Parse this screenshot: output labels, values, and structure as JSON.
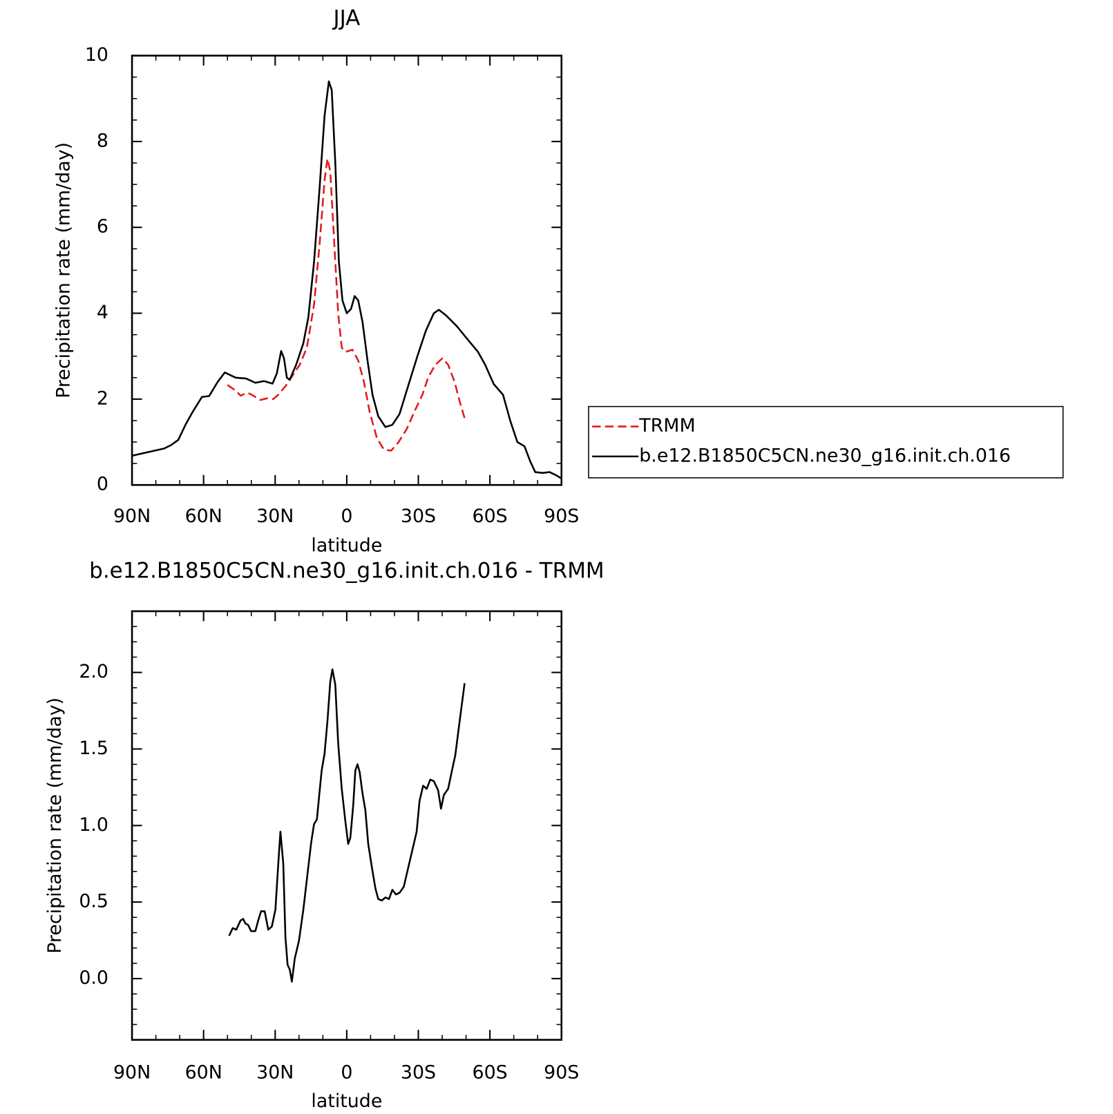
{
  "chart_data": [
    {
      "type": "line",
      "title": "JJA",
      "xlabel": "latitude",
      "ylabel": "Precipitation rate (mm/day)",
      "xlim": [
        90,
        -90
      ],
      "ylim": [
        0,
        10
      ],
      "xticks": [
        {
          "value": 90,
          "label": "90N"
        },
        {
          "value": 60,
          "label": "60N"
        },
        {
          "value": 30,
          "label": "30N"
        },
        0,
        {
          "value": -30,
          "label": "30S"
        },
        {
          "value": -60,
          "label": "60S"
        },
        {
          "value": -90,
          "label": "90S"
        }
      ],
      "yticks": [
        0,
        2,
        4,
        6,
        8,
        10
      ],
      "legend": "right",
      "series": [
        {
          "name": "TRMM",
          "color": "#e41a1c",
          "line_style": "dashed",
          "x": [
            50,
            46.6,
            44.5,
            41.6,
            39.2,
            36.2,
            33.2,
            30.8,
            28.7,
            25.7,
            22.7,
            19.7,
            16.7,
            13.7,
            11.4,
            9.3,
            8.1,
            6.9,
            5.4,
            3.6,
            2.1,
            0.6,
            -2.4,
            -4.8,
            -7.2,
            -9.6,
            -12.6,
            -15.6,
            -18.6,
            -21.5,
            -25.1,
            -28.7,
            -31.7,
            -34.1,
            -37.1,
            -40.1,
            -42.5,
            -45.2,
            -47.3,
            -49.7
          ],
          "values": [
            2.33,
            2.2,
            2.08,
            2.15,
            2.08,
            1.98,
            2.02,
            2.0,
            2.1,
            2.3,
            2.55,
            2.8,
            3.2,
            4.2,
            5.6,
            7.1,
            7.6,
            7.3,
            5.8,
            4.0,
            3.2,
            3.1,
            3.15,
            2.9,
            2.4,
            1.7,
            1.1,
            0.82,
            0.8,
            0.98,
            1.3,
            1.75,
            2.1,
            2.5,
            2.8,
            2.95,
            2.8,
            2.4,
            1.95,
            1.5
          ]
        },
        {
          "name": "b.e12.B1850C5CN.ne30_g16.init.ch.016",
          "color": "#000000",
          "line_style": "solid",
          "x": [
            90,
            76.5,
            73.6,
            70.6,
            67.6,
            64.6,
            60.7,
            57.7,
            54.1,
            51.1,
            46.6,
            42.2,
            38.3,
            34.7,
            31.1,
            29.3,
            27.5,
            26.3,
            25.1,
            23.9,
            21.2,
            18.2,
            16.1,
            13.7,
            11.4,
            9.3,
            7.5,
            6.3,
            4.8,
            3.3,
            1.8,
            0,
            -1.8,
            -3.3,
            -4.8,
            -6.6,
            -8.7,
            -10.8,
            -13.2,
            -16.2,
            -19.1,
            -22.1,
            -25.7,
            -29.6,
            -33.2,
            -36.5,
            -38.6,
            -41.6,
            -46.1,
            -50.5,
            -55,
            -58,
            -61.6,
            -65.5,
            -68.5,
            -71.5,
            -74.5,
            -76.9,
            -79,
            -82,
            -85,
            -88,
            -90
          ],
          "values": [
            0.68,
            0.85,
            0.93,
            1.05,
            1.4,
            1.7,
            2.05,
            2.07,
            2.4,
            2.62,
            2.5,
            2.48,
            2.38,
            2.42,
            2.36,
            2.6,
            3.12,
            2.95,
            2.5,
            2.45,
            2.8,
            3.3,
            3.9,
            5.2,
            6.9,
            8.6,
            9.4,
            9.2,
            7.5,
            5.2,
            4.3,
            4.0,
            4.1,
            4.4,
            4.3,
            3.8,
            2.9,
            2.1,
            1.6,
            1.35,
            1.4,
            1.65,
            2.3,
            3.0,
            3.6,
            4.0,
            4.08,
            3.95,
            3.7,
            3.4,
            3.1,
            2.8,
            2.35,
            2.1,
            1.5,
            1.0,
            0.9,
            0.55,
            0.3,
            0.28,
            0.3,
            0.22,
            0.15
          ]
        }
      ]
    },
    {
      "type": "line",
      "title": "b.e12.B1850C5CN.ne30_g16.init.ch.016 - TRMM",
      "xlabel": "latitude",
      "ylabel": "Precipitation rate (mm/day)",
      "xlim": [
        90,
        -90
      ],
      "ylim": [
        -0.4,
        2.4
      ],
      "xticks": [
        {
          "value": 90,
          "label": "90N"
        },
        {
          "value": 60,
          "label": "60N"
        },
        {
          "value": 30,
          "label": "30N"
        },
        0,
        {
          "value": -30,
          "label": "30S"
        },
        {
          "value": -60,
          "label": "60S"
        },
        {
          "value": -90,
          "label": "90S"
        }
      ],
      "yticks": [
        {
          "value": 0,
          "label": "0.0"
        },
        {
          "value": 0.5,
          "label": "0.5"
        },
        {
          "value": 1,
          "label": "1.0"
        },
        {
          "value": 1.5,
          "label": "1.5"
        },
        {
          "value": 2,
          "label": "2.0"
        }
      ],
      "color": "#000000",
      "x": [
        49.3,
        47.8,
        46.3,
        44.5,
        43.4,
        42.5,
        41.3,
        40.1,
        38.3,
        37.1,
        35.9,
        34.4,
        32.9,
        31.4,
        29.9,
        28.7,
        27.8,
        26.6,
        25.7,
        24.8,
        23.9,
        23,
        21.8,
        20,
        18.2,
        16.7,
        14.9,
        13.7,
        12.5,
        11.4,
        10.5,
        9.3,
        8.1,
        6.9,
        6,
        4.8,
        3.6,
        2.1,
        0.6,
        -0.6,
        -1.5,
        -2.7,
        -3.6,
        -4.5,
        -5.4,
        -6.6,
        -7.8,
        -9,
        -10.5,
        -12,
        -13.2,
        -14.7,
        -16.2,
        -17.7,
        -19.1,
        -20.6,
        -22.1,
        -23.9,
        -25.7,
        -27.5,
        -29.3,
        -30.5,
        -32,
        -33.5,
        -35,
        -36.5,
        -38.3,
        -39.5,
        -40.7,
        -42.5,
        -43.7,
        -45.5,
        -47.3,
        -49.4
      ],
      "values": [
        0.28,
        0.33,
        0.32,
        0.38,
        0.39,
        0.36,
        0.35,
        0.31,
        0.31,
        0.38,
        0.44,
        0.44,
        0.32,
        0.34,
        0.45,
        0.75,
        0.96,
        0.75,
        0.27,
        0.09,
        0.06,
        -0.02,
        0.13,
        0.25,
        0.45,
        0.65,
        0.89,
        1.01,
        1.04,
        1.22,
        1.36,
        1.47,
        1.68,
        1.94,
        2.02,
        1.92,
        1.54,
        1.24,
        1.03,
        0.88,
        0.92,
        1.13,
        1.36,
        1.4,
        1.35,
        1.21,
        1.1,
        0.88,
        0.73,
        0.59,
        0.52,
        0.51,
        0.53,
        0.52,
        0.58,
        0.55,
        0.56,
        0.6,
        0.72,
        0.84,
        0.96,
        1.16,
        1.26,
        1.24,
        1.3,
        1.29,
        1.23,
        1.11,
        1.2,
        1.24,
        1.33,
        1.46,
        1.68,
        1.93
      ]
    }
  ]
}
